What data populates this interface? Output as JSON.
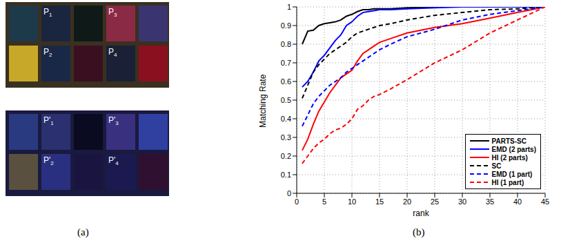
{
  "figure": {
    "captions": [
      "(a)",
      "(b)"
    ],
    "image_labels": {
      "top": [
        {
          "text": "P",
          "sub": "1"
        },
        {
          "text": "P",
          "sub": "2"
        },
        {
          "text": "P",
          "sub": "3"
        },
        {
          "text": "P",
          "sub": "4"
        }
      ],
      "bottom": [
        {
          "text": "P'",
          "sub": "1"
        },
        {
          "text": "P'",
          "sub": "2"
        },
        {
          "text": "P'",
          "sub": "3"
        },
        {
          "text": "P'",
          "sub": "4"
        }
      ]
    }
  },
  "chart_data": {
    "type": "line",
    "xlabel": "rank",
    "ylabel": "Matching Rate",
    "x": [
      1,
      2,
      3,
      4,
      5,
      6,
      7,
      8,
      9,
      10,
      11,
      12,
      13,
      14,
      15,
      17,
      20,
      25,
      30,
      35,
      40,
      45
    ],
    "xlim": [
      0,
      45
    ],
    "xticks": [
      0,
      5,
      10,
      15,
      20,
      25,
      30,
      35,
      40,
      45
    ],
    "ylim": [
      0,
      1
    ],
    "yticks": [
      0,
      0.1,
      0.2,
      0.3,
      0.4,
      0.5,
      0.6,
      0.7,
      0.8,
      0.9,
      1
    ],
    "grid": true,
    "legend": "lower right",
    "series": [
      {
        "name": "PARTS-SC",
        "color": "#000000",
        "line_style": "solid",
        "values": [
          0.8,
          0.87,
          0.875,
          0.9,
          0.91,
          0.915,
          0.92,
          0.93,
          0.95,
          0.96,
          0.975,
          0.985,
          0.985,
          0.99,
          0.99,
          0.99,
          0.995,
          1,
          1,
          1,
          1,
          1
        ]
      },
      {
        "name": "EMD (2 parts)",
        "color": "#0000ff",
        "line_style": "solid",
        "values": [
          0.57,
          0.6,
          0.65,
          0.71,
          0.74,
          0.78,
          0.82,
          0.85,
          0.9,
          0.92,
          0.95,
          0.97,
          0.975,
          0.98,
          0.985,
          0.985,
          0.99,
          0.995,
          1,
          1,
          1,
          1
        ]
      },
      {
        "name": "HI (2 parts)",
        "color": "#ff0000",
        "line_style": "solid",
        "values": [
          0.23,
          0.29,
          0.37,
          0.44,
          0.49,
          0.54,
          0.58,
          0.62,
          0.64,
          0.66,
          0.71,
          0.75,
          0.77,
          0.79,
          0.81,
          0.83,
          0.86,
          0.89,
          0.91,
          0.94,
          0.97,
          1
        ]
      },
      {
        "name": "SC",
        "color": "#000000",
        "line_style": "dashed",
        "values": [
          0.51,
          0.58,
          0.65,
          0.69,
          0.72,
          0.75,
          0.77,
          0.79,
          0.81,
          0.84,
          0.86,
          0.87,
          0.88,
          0.89,
          0.9,
          0.91,
          0.93,
          0.955,
          0.97,
          0.985,
          0.99,
          1
        ]
      },
      {
        "name": "EMD (1 part)",
        "color": "#0000ff",
        "line_style": "dashed",
        "values": [
          0.36,
          0.42,
          0.48,
          0.52,
          0.55,
          0.58,
          0.6,
          0.62,
          0.65,
          0.67,
          0.69,
          0.71,
          0.73,
          0.75,
          0.77,
          0.8,
          0.84,
          0.88,
          0.93,
          0.96,
          0.98,
          1
        ]
      },
      {
        "name": "HI (1 part)",
        "color": "#ff0000",
        "line_style": "dashed",
        "values": [
          0.16,
          0.2,
          0.24,
          0.27,
          0.29,
          0.32,
          0.34,
          0.35,
          0.37,
          0.4,
          0.45,
          0.47,
          0.5,
          0.52,
          0.53,
          0.56,
          0.61,
          0.7,
          0.77,
          0.86,
          0.93,
          1
        ]
      }
    ]
  }
}
